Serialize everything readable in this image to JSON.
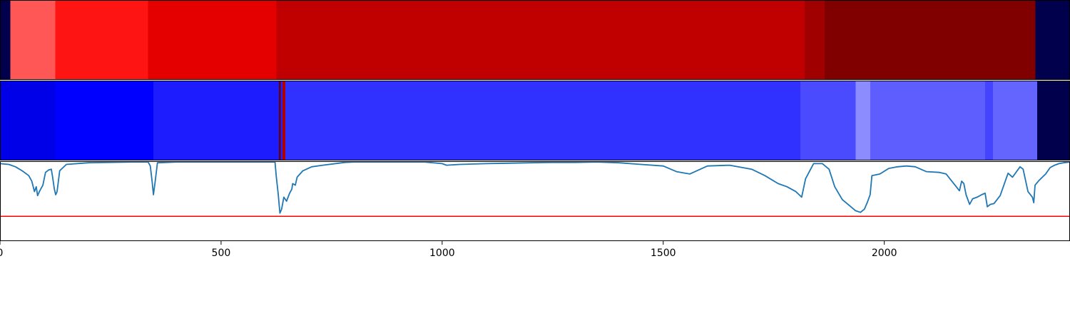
{
  "chart_data": {
    "type": "heatmap",
    "x_axis": {
      "range": [
        0,
        2420
      ],
      "ticks": [
        0,
        500,
        1000,
        1500,
        2000
      ],
      "tick_labels": [
        "0",
        "500",
        "1000",
        "1500",
        "2000"
      ]
    },
    "background_color": "#00004c",
    "tracks": [
      {
        "type": "heatmap",
        "segments": [
          {
            "start": 0,
            "end": 23,
            "color": "#00004c"
          },
          {
            "start": 23,
            "end": 125,
            "color": "#ff5656"
          },
          {
            "start": 125,
            "end": 335,
            "color": "#ff1414"
          },
          {
            "start": 335,
            "end": 625,
            "color": "#e50000"
          },
          {
            "start": 625,
            "end": 1820,
            "color": "#c00000"
          },
          {
            "start": 1820,
            "end": 1865,
            "color": "#a00000"
          },
          {
            "start": 1865,
            "end": 2342,
            "color": "#800000"
          },
          {
            "start": 2342,
            "end": 2420,
            "color": "#00004c"
          }
        ]
      },
      {
        "type": "heatmap",
        "segments": [
          {
            "start": 0,
            "end": 125,
            "color": "#0000e8"
          },
          {
            "start": 125,
            "end": 347,
            "color": "#0000ff"
          },
          {
            "start": 347,
            "end": 631,
            "color": "#1c1cff"
          },
          {
            "start": 631,
            "end": 635,
            "color": "#6a0000"
          },
          {
            "start": 635,
            "end": 639,
            "color": "#2020ff"
          },
          {
            "start": 639,
            "end": 645,
            "color": "#b00000"
          },
          {
            "start": 645,
            "end": 1810,
            "color": "#3030ff"
          },
          {
            "start": 1810,
            "end": 1935,
            "color": "#4a4aff"
          },
          {
            "start": 1935,
            "end": 1968,
            "color": "#8c8cff"
          },
          {
            "start": 1968,
            "end": 2228,
            "color": "#5e5eff"
          },
          {
            "start": 2228,
            "end": 2246,
            "color": "#4444ff"
          },
          {
            "start": 2246,
            "end": 2346,
            "color": "#6464ff"
          },
          {
            "start": 2346,
            "end": 2420,
            "color": "#00004c"
          }
        ]
      },
      {
        "type": "line",
        "ylim": [
          0,
          1
        ],
        "threshold": 0.31,
        "threshold_color": "#ff0000",
        "line_color": "#1f77b4",
        "points": [
          [
            0,
            0.97
          ],
          [
            20,
            0.96
          ],
          [
            35,
            0.93
          ],
          [
            50,
            0.88
          ],
          [
            65,
            0.82
          ],
          [
            72,
            0.75
          ],
          [
            78,
            0.62
          ],
          [
            82,
            0.68
          ],
          [
            85,
            0.57
          ],
          [
            90,
            0.63
          ],
          [
            97,
            0.7
          ],
          [
            103,
            0.86
          ],
          [
            110,
            0.89
          ],
          [
            116,
            0.9
          ],
          [
            119,
            0.8
          ],
          [
            123,
            0.65
          ],
          [
            126,
            0.58
          ],
          [
            129,
            0.62
          ],
          [
            135,
            0.88
          ],
          [
            150,
            0.96
          ],
          [
            200,
            0.98
          ],
          [
            300,
            0.99
          ],
          [
            335,
            0.99
          ],
          [
            340,
            0.94
          ],
          [
            344,
            0.75
          ],
          [
            347,
            0.58
          ],
          [
            351,
            0.75
          ],
          [
            356,
            0.98
          ],
          [
            400,
            0.99
          ],
          [
            500,
            0.99
          ],
          [
            600,
            0.99
          ],
          [
            622,
            0.99
          ],
          [
            625,
            0.8
          ],
          [
            629,
            0.6
          ],
          [
            633,
            0.35
          ],
          [
            637,
            0.4
          ],
          [
            642,
            0.55
          ],
          [
            648,
            0.5
          ],
          [
            655,
            0.6
          ],
          [
            660,
            0.65
          ],
          [
            662,
            0.72
          ],
          [
            668,
            0.7
          ],
          [
            672,
            0.8
          ],
          [
            685,
            0.88
          ],
          [
            705,
            0.93
          ],
          [
            730,
            0.95
          ],
          [
            780,
            0.985
          ],
          [
            800,
            0.99
          ],
          [
            840,
            0.99
          ],
          [
            900,
            0.99
          ],
          [
            960,
            0.99
          ],
          [
            1000,
            0.97
          ],
          [
            1010,
            0.95
          ],
          [
            1040,
            0.96
          ],
          [
            1100,
            0.97
          ],
          [
            1150,
            0.975
          ],
          [
            1200,
            0.98
          ],
          [
            1250,
            0.985
          ],
          [
            1300,
            0.985
          ],
          [
            1350,
            0.99
          ],
          [
            1400,
            0.98
          ],
          [
            1450,
            0.96
          ],
          [
            1500,
            0.94
          ],
          [
            1530,
            0.87
          ],
          [
            1560,
            0.84
          ],
          [
            1580,
            0.89
          ],
          [
            1600,
            0.94
          ],
          [
            1650,
            0.95
          ],
          [
            1700,
            0.9
          ],
          [
            1730,
            0.82
          ],
          [
            1760,
            0.72
          ],
          [
            1780,
            0.68
          ],
          [
            1800,
            0.62
          ],
          [
            1813,
            0.55
          ],
          [
            1822,
            0.78
          ],
          [
            1840,
            0.97
          ],
          [
            1860,
            0.97
          ],
          [
            1875,
            0.9
          ],
          [
            1888,
            0.68
          ],
          [
            1905,
            0.52
          ],
          [
            1920,
            0.45
          ],
          [
            1935,
            0.38
          ],
          [
            1946,
            0.36
          ],
          [
            1955,
            0.4
          ],
          [
            1962,
            0.49
          ],
          [
            1968,
            0.58
          ],
          [
            1972,
            0.82
          ],
          [
            1990,
            0.84
          ],
          [
            2010,
            0.91
          ],
          [
            2030,
            0.93
          ],
          [
            2050,
            0.94
          ],
          [
            2070,
            0.93
          ],
          [
            2095,
            0.87
          ],
          [
            2125,
            0.86
          ],
          [
            2140,
            0.84
          ],
          [
            2160,
            0.7
          ],
          [
            2170,
            0.63
          ],
          [
            2175,
            0.75
          ],
          [
            2180,
            0.72
          ],
          [
            2185,
            0.58
          ],
          [
            2193,
            0.46
          ],
          [
            2200,
            0.53
          ],
          [
            2210,
            0.55
          ],
          [
            2220,
            0.58
          ],
          [
            2228,
            0.6
          ],
          [
            2233,
            0.43
          ],
          [
            2240,
            0.46
          ],
          [
            2248,
            0.47
          ],
          [
            2262,
            0.57
          ],
          [
            2280,
            0.85
          ],
          [
            2290,
            0.8
          ],
          [
            2307,
            0.93
          ],
          [
            2314,
            0.9
          ],
          [
            2325,
            0.62
          ],
          [
            2335,
            0.55
          ],
          [
            2338,
            0.48
          ],
          [
            2341,
            0.7
          ],
          [
            2350,
            0.76
          ],
          [
            2365,
            0.84
          ],
          [
            2375,
            0.92
          ],
          [
            2385,
            0.95
          ],
          [
            2395,
            0.97
          ],
          [
            2405,
            0.98
          ],
          [
            2420,
            0.99
          ]
        ]
      }
    ]
  }
}
